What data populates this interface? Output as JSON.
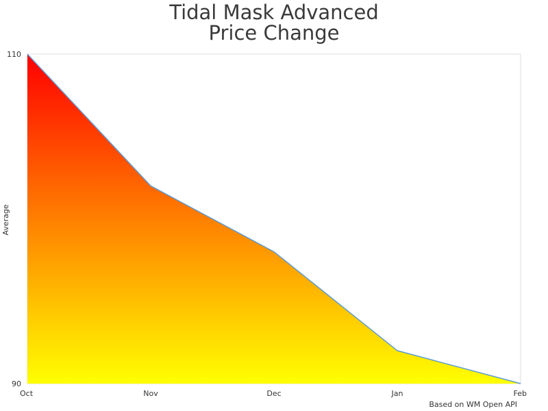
{
  "chart_data": {
    "type": "area",
    "title_lines": [
      "Tidal Mask Advanced",
      "Price Change"
    ],
    "ylabel": "Average",
    "xlabel": "",
    "categories": [
      "Oct",
      "Nov",
      "Dec",
      "Jan",
      "Feb"
    ],
    "values": [
      110,
      102,
      98,
      92,
      90
    ],
    "ylim": [
      90,
      110
    ],
    "y_ticks": [
      90,
      110
    ],
    "grid": false,
    "gradient_colors": {
      "top": "#ff0000",
      "bottom": "#ffff00"
    },
    "line_color": "#5b9bd5",
    "credit": "Based on WM Open API"
  }
}
